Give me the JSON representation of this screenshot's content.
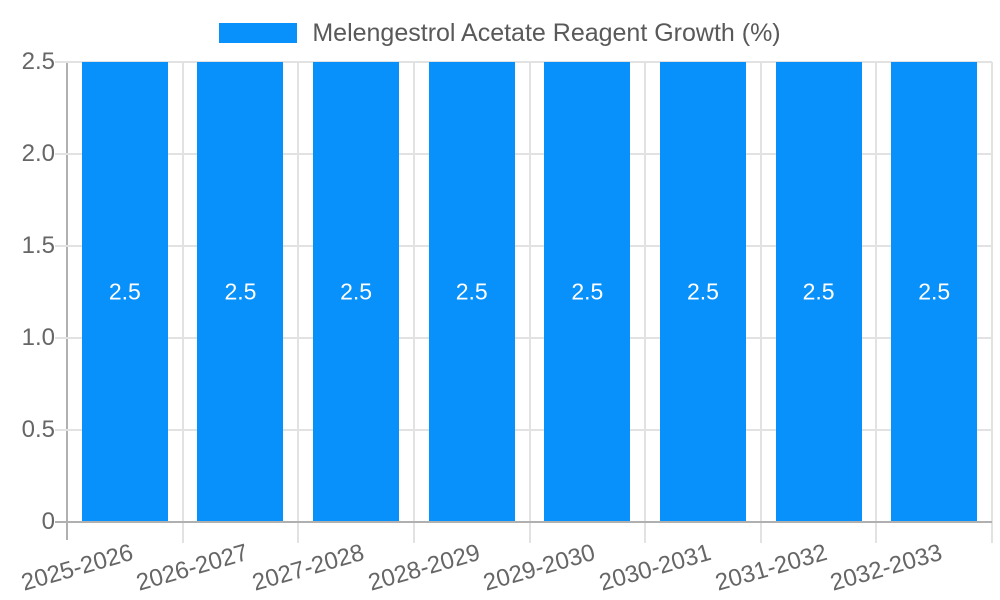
{
  "chart_data": {
    "type": "bar",
    "title": "Melengestrol Acetate Reagent Growth (%)",
    "xlabel": "",
    "ylabel": "",
    "categories": [
      "2025-2026",
      "2026-2027",
      "2027-2028",
      "2028-2029",
      "2029-2030",
      "2030-2031",
      "2031-2032",
      "2032-2033"
    ],
    "series": [
      {
        "name": "Melengestrol Acetate Reagent Growth (%)",
        "values": [
          2.5,
          2.5,
          2.5,
          2.5,
          2.5,
          2.5,
          2.5,
          2.5
        ],
        "bar_value_labels": [
          "2.5",
          "2.5",
          "2.5",
          "2.5",
          "2.5",
          "2.5",
          "2.5",
          "2.5"
        ]
      }
    ],
    "ylim": [
      0,
      2.5
    ],
    "ytick_values": [
      0,
      0.5,
      1.0,
      1.5,
      2.0,
      2.5
    ],
    "ytick_labels": [
      "0",
      "0.5",
      "1.0",
      "1.5",
      "2.0",
      "2.5"
    ],
    "grid": true,
    "legend_position": "top",
    "colors": {
      "bar": "#0891FA",
      "gridline": "#e2e2e2",
      "axis_line": "#b0b0b0",
      "tick_text": "#666666",
      "title_text": "#595959",
      "bar_label_text": "#ffffff",
      "background": "#ffffff"
    }
  }
}
